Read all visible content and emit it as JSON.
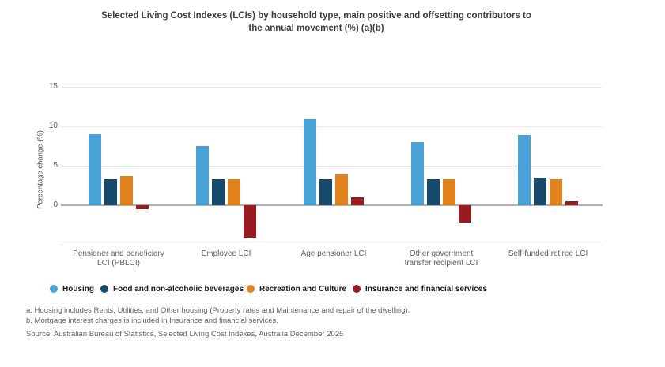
{
  "title_lines": [
    "Selected Living Cost Indexes (LCIs) by household type, main positive and offsetting contributors to",
    "the annual movement (%) (a)(b)"
  ],
  "chart_data": {
    "type": "bar",
    "title": "Selected Living Cost Indexes (LCIs) by household type, main positive and offsetting contributors to the annual movement (%) (a)(b)",
    "xlabel": "",
    "ylabel": "Percentage change (%)",
    "ylim": [
      -5,
      15
    ],
    "yticks": [
      15,
      10,
      5,
      0
    ],
    "grid": "horizontal-dotted",
    "legend_position": "bottom",
    "categories": [
      "Pensioner and beneficiary LCI (PBLCI)",
      "Employee LCI",
      "Age pensioner LCI",
      "Other government transfer recipient LCI",
      "Self-funded retiree LCI"
    ],
    "category_lines": [
      [
        "Pensioner and beneficiary",
        "LCI (PBLCI)"
      ],
      [
        "Employee LCI"
      ],
      [
        "Age pensioner LCI"
      ],
      [
        "Other government",
        "transfer recipient LCI"
      ],
      [
        "Self-funded retiree LCI"
      ]
    ],
    "series": [
      {
        "name": "Housing",
        "color": "#4AA3D8",
        "values": [
          9.0,
          7.5,
          10.9,
          8.0,
          8.9
        ]
      },
      {
        "name": "Food and non-alcoholic beverages",
        "color": "#17496A",
        "values": [
          3.3,
          3.3,
          3.3,
          3.3,
          3.5
        ]
      },
      {
        "name": "Recreation and Culture",
        "color": "#E2831D",
        "values": [
          3.7,
          3.3,
          3.9,
          3.3,
          3.3
        ]
      },
      {
        "name": "Insurance and financial services",
        "color": "#981B21",
        "values": [
          -0.5,
          -4.1,
          1.0,
          -2.2,
          0.5
        ]
      }
    ]
  },
  "footnotes": [
    "a. Housing includes Rents, Utilities, and Other housing (Property rates and Maintenance and repair of the dwelling).",
    "b. Mortgage interest charges is included in Insurance and financial services."
  ],
  "source": "Source: Australian Bureau of Statistics, Selected Living Cost Indexes, Australia December 2025",
  "colors": {
    "gridline": "#D7D7D7",
    "zero_line": "#B0B0B0",
    "title_text": "#3D3D3D",
    "axis_text": "#5F5F5F",
    "footnote_text": "#666666"
  }
}
